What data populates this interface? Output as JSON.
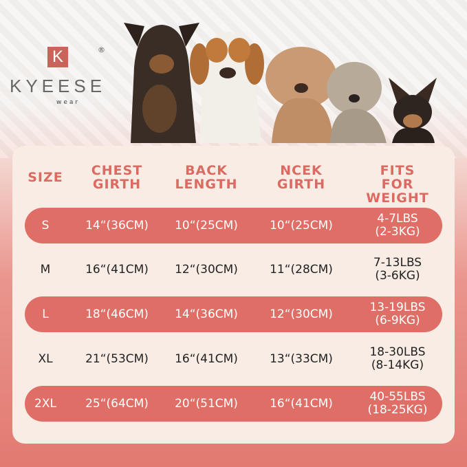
{
  "brand": {
    "logo_letter": "K",
    "name": "KYEESE",
    "sub": "wear",
    "registered": "®"
  },
  "colors": {
    "accent": "#df6f66",
    "header_text": "#db6a61",
    "panel": "#f8ece4"
  },
  "table": {
    "headers": [
      [
        "SIZE",
        ""
      ],
      [
        "CHEST",
        "GIRTH"
      ],
      [
        "BACK",
        "LENGTH"
      ],
      [
        "NCEK",
        "GIRTH"
      ],
      [
        "FITS FOR",
        "WEIGHT"
      ]
    ],
    "rows": [
      {
        "size": "S",
        "chest": "14“(36CM)",
        "back": "10“(25CM)",
        "neck": "10“(25CM)",
        "weight": [
          "4-7LBS",
          "(2-3KG)"
        ],
        "highlight": true
      },
      {
        "size": "M",
        "chest": "16“(41CM)",
        "back": "12“(30CM)",
        "neck": "11“(28CM)",
        "weight": [
          "7-13LBS",
          "(3-6KG)"
        ],
        "highlight": false
      },
      {
        "size": "L",
        "chest": "18“(46CM)",
        "back": "14“(36CM)",
        "neck": "12“(30CM)",
        "weight": [
          "13-19LBS",
          "(6-9KG)"
        ],
        "highlight": true
      },
      {
        "size": "XL",
        "chest": "21“(53CM)",
        "back": "16“(41CM)",
        "neck": "13“(33CM)",
        "weight": [
          "18-30LBS",
          "(8-14KG)"
        ],
        "highlight": false
      },
      {
        "size": "2XL",
        "chest": "25“(64CM)",
        "back": "20“(51CM)",
        "neck": "16“(41CM)",
        "weight": [
          "40-55LBS",
          "(18-25KG)"
        ],
        "highlight": true
      }
    ]
  }
}
